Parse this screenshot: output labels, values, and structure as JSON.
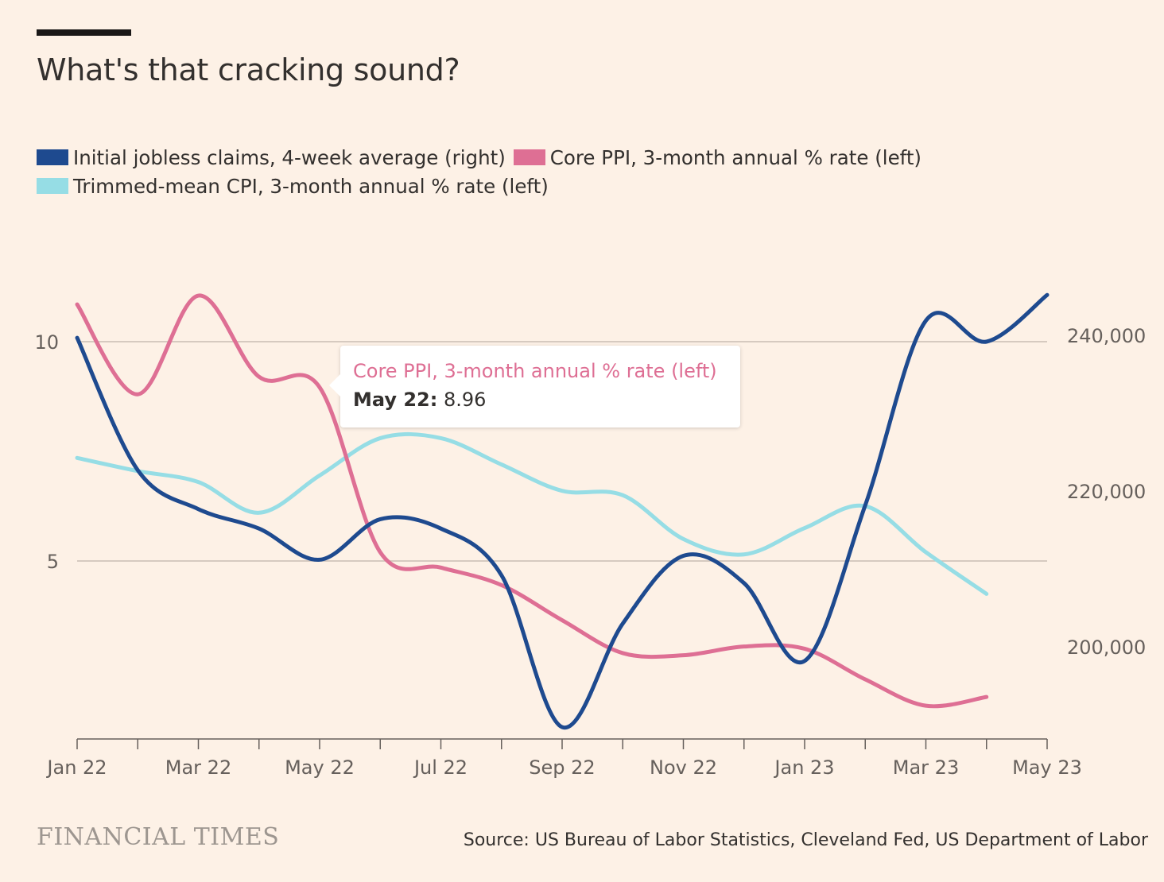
{
  "title": "What's that cracking sound?",
  "source": "Source: US Bureau of Labor Statistics, Cleveland Fed, US Department of Labor",
  "brand": "FINANCIAL TIMES",
  "tooltip": {
    "series": "Core PPI, 3-month annual % rate (left)",
    "date": "May 22:",
    "value": "8.96"
  },
  "legend": [
    {
      "label": "Initial jobless claims, 4-week average (right)",
      "color": "#1e4a8f"
    },
    {
      "label": "Core PPI, 3-month annual % rate (left)",
      "color": "#de6f94"
    },
    {
      "label": "Trimmed-mean CPI, 3-month annual % rate (left)",
      "color": "#96dde5"
    }
  ],
  "chart_data": {
    "type": "line",
    "xlabel": "",
    "ylabel_left": "",
    "ylabel_right": "",
    "x_range": [
      "2022-01",
      "2023-05"
    ],
    "x_tick_labels": [
      "Jan 22",
      "Mar 22",
      "May 22",
      "Jul 22",
      "Sep 22",
      "Nov 22",
      "Jan 23",
      "Mar 23",
      "May 23"
    ],
    "x_tick_months": [
      "2022-01",
      "2022-02",
      "2022-03",
      "2022-04",
      "2022-05",
      "2022-06",
      "2022-07",
      "2022-08",
      "2022-09",
      "2022-10",
      "2022-11",
      "2022-12",
      "2023-01",
      "2023-02",
      "2023-03",
      "2023-04",
      "2023-05"
    ],
    "y_left": {
      "ticks": [
        5,
        10
      ],
      "range": [
        1,
        11.5
      ]
    },
    "y_right": {
      "ticks": [
        200000,
        220000,
        240000
      ],
      "tick_labels": [
        "200,000",
        "220,000",
        "240,000"
      ],
      "range": [
        189000,
        246000
      ]
    },
    "grid": true,
    "legend_position": "top",
    "series": [
      {
        "name": "Initial jobless claims, 4-week average (right)",
        "axis": "right",
        "color": "#1e4a8f",
        "points": [
          [
            "2022-01",
            240500
          ],
          [
            "2022-02",
            223500
          ],
          [
            "2022-03",
            218500
          ],
          [
            "2022-04",
            216000
          ],
          [
            "2022-05",
            212000
          ],
          [
            "2022-06",
            217200
          ],
          [
            "2022-07",
            216000
          ],
          [
            "2022-08",
            210000
          ],
          [
            "2022-09",
            190500
          ],
          [
            "2022-10",
            203800
          ],
          [
            "2022-11",
            212500
          ],
          [
            "2022-12",
            209000
          ],
          [
            "2023-01",
            199000
          ],
          [
            "2023-02",
            219000
          ],
          [
            "2023-03",
            242700
          ],
          [
            "2023-04",
            240000
          ],
          [
            "2023-05",
            246000
          ]
        ]
      },
      {
        "name": "Core PPI, 3-month annual % rate (left)",
        "axis": "left",
        "color": "#de6f94",
        "points": [
          [
            "2022-01",
            10.85
          ],
          [
            "2022-02",
            8.8
          ],
          [
            "2022-03",
            11.05
          ],
          [
            "2022-04",
            9.2
          ],
          [
            "2022-05",
            8.96
          ],
          [
            "2022-06",
            5.2
          ],
          [
            "2022-07",
            4.85
          ],
          [
            "2022-08",
            4.45
          ],
          [
            "2022-09",
            3.65
          ],
          [
            "2022-10",
            2.9
          ],
          [
            "2022-11",
            2.85
          ],
          [
            "2022-12",
            3.05
          ],
          [
            "2023-01",
            3.0
          ],
          [
            "2023-02",
            2.3
          ],
          [
            "2023-03",
            1.7
          ],
          [
            "2023-04",
            1.9
          ]
        ]
      },
      {
        "name": "Trimmed-mean CPI, 3-month annual % rate (left)",
        "axis": "left",
        "color": "#96dde5",
        "points": [
          [
            "2022-01",
            7.35
          ],
          [
            "2022-02",
            7.05
          ],
          [
            "2022-03",
            6.8
          ],
          [
            "2022-04",
            6.1
          ],
          [
            "2022-05",
            6.95
          ],
          [
            "2022-06",
            7.8
          ],
          [
            "2022-07",
            7.8
          ],
          [
            "2022-08",
            7.2
          ],
          [
            "2022-09",
            6.6
          ],
          [
            "2022-10",
            6.5
          ],
          [
            "2022-11",
            5.5
          ],
          [
            "2022-12",
            5.15
          ],
          [
            "2023-01",
            5.75
          ],
          [
            "2023-02",
            6.25
          ],
          [
            "2023-03",
            5.2
          ],
          [
            "2023-04",
            4.25
          ]
        ]
      }
    ]
  }
}
